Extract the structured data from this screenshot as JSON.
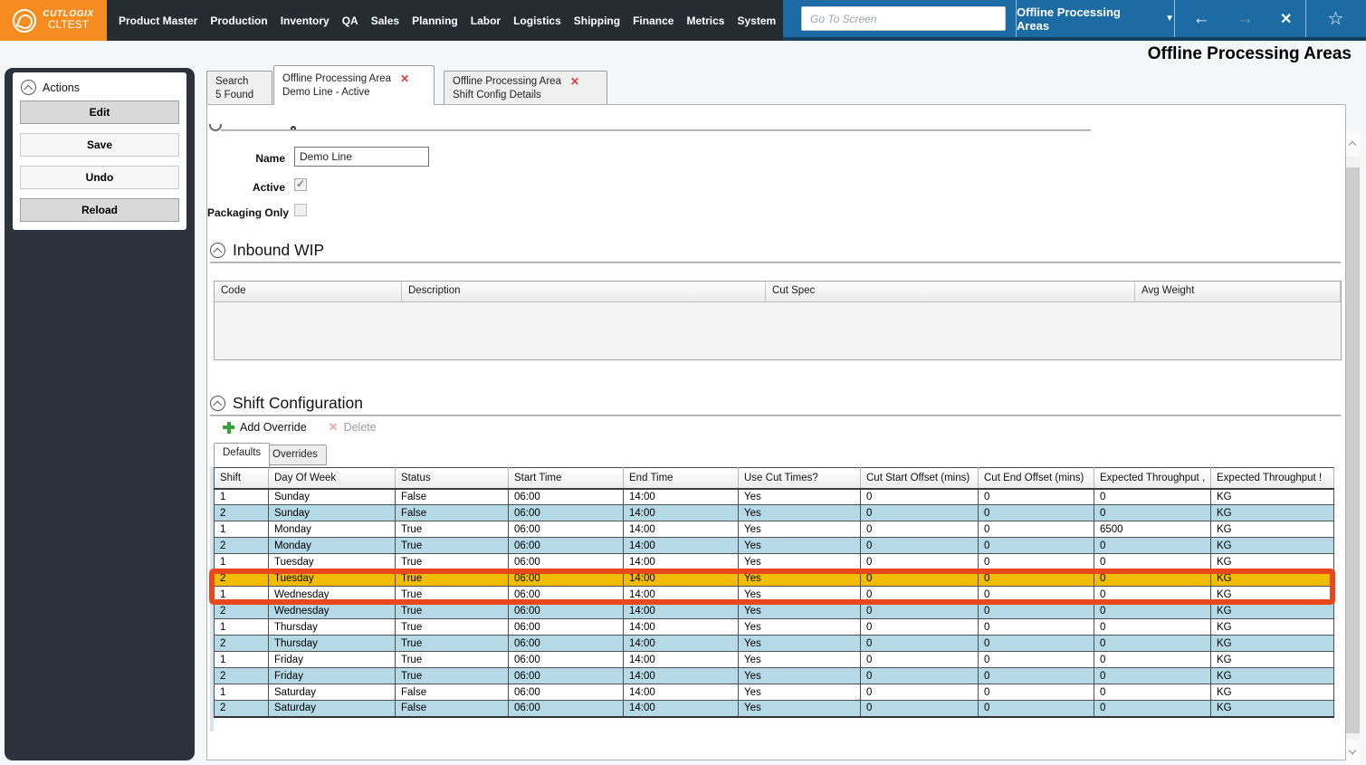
{
  "colors": {
    "logo_orange": "#f68b1f",
    "nav_dark": "#272c33",
    "accent_blue": "#1c6ba5",
    "nav_strip": "#123f5e",
    "sidebar_dark": "#2d333c",
    "tab_close_red": "#e03a3a",
    "add_green": "#3aa23a",
    "row_alt_blue": "#b5d9e6",
    "highlight_yellow": "#f2bd00",
    "annotation_orange": "#e8481b"
  },
  "app": {
    "logo_title": "CUTLOGIX",
    "logo_subtitle": "CLTEST",
    "menu": [
      "Product Master",
      "Production",
      "Inventory",
      "QA",
      "Sales",
      "Planning",
      "Labor",
      "Logistics",
      "Shipping",
      "Finance",
      "Metrics",
      "System"
    ],
    "goto_placeholder": "Go To Screen",
    "screen_selector": "Offline Processing Areas"
  },
  "page": {
    "title": "Offline Processing Areas"
  },
  "sidebar": {
    "header": "Actions",
    "buttons": [
      {
        "label": "Edit",
        "enabled": true
      },
      {
        "label": "Save",
        "enabled": false
      },
      {
        "label": "Undo",
        "enabled": false
      },
      {
        "label": "Reload",
        "enabled": true
      }
    ]
  },
  "tabs": [
    {
      "line1": "Search",
      "line2": "5 Found",
      "closable": false,
      "active": false
    },
    {
      "line1": "Offline Processing Area",
      "line2": "Demo Line - Active",
      "closable": true,
      "active": true
    },
    {
      "line1": "Offline Processing Area",
      "line2": "Shift Config Details",
      "closable": true,
      "active": false
    }
  ],
  "form": {
    "name_label": "Name",
    "name_value": "Demo Line",
    "active_label": "Active",
    "active_checked": true,
    "packaging_label": "Packaging Only",
    "packaging_checked": false
  },
  "inbound_wip": {
    "title": "Inbound WIP",
    "columns": [
      "Code",
      "Description",
      "Cut Spec",
      "Avg Weight"
    ]
  },
  "shift_config": {
    "title": "Shift Configuration",
    "toolbar": {
      "add": "Add Override",
      "delete": "Delete"
    },
    "tabs": [
      "Defaults",
      "Overrides"
    ],
    "columns": [
      "Shift",
      "Day Of Week",
      "Status",
      "Start Time",
      "End Time",
      "Use Cut Times?",
      "Cut Start Offset (mins)",
      "Cut End Offset (mins)",
      "Expected Throughput ,",
      "Expected Throughput !"
    ],
    "rows": [
      [
        "1",
        "Sunday",
        "False",
        "06:00",
        "14:00",
        "Yes",
        "0",
        "0",
        "0",
        "KG"
      ],
      [
        "2",
        "Sunday",
        "False",
        "06:00",
        "14:00",
        "Yes",
        "0",
        "0",
        "0",
        "KG"
      ],
      [
        "1",
        "Monday",
        "True",
        "06:00",
        "14:00",
        "Yes",
        "0",
        "0",
        "6500",
        "KG"
      ],
      [
        "2",
        "Monday",
        "True",
        "06:00",
        "14:00",
        "Yes",
        "0",
        "0",
        "0",
        "KG"
      ],
      [
        "1",
        "Tuesday",
        "True",
        "06:00",
        "14:00",
        "Yes",
        "0",
        "0",
        "0",
        "KG"
      ],
      [
        "2",
        "Tuesday",
        "True",
        "06:00",
        "14:00",
        "Yes",
        "0",
        "0",
        "0",
        "KG"
      ],
      [
        "1",
        "Wednesday",
        "True",
        "06:00",
        "14:00",
        "Yes",
        "0",
        "0",
        "0",
        "KG"
      ],
      [
        "2",
        "Wednesday",
        "True",
        "06:00",
        "14:00",
        "Yes",
        "0",
        "0",
        "0",
        "KG"
      ],
      [
        "1",
        "Thursday",
        "True",
        "06:00",
        "14:00",
        "Yes",
        "0",
        "0",
        "0",
        "KG"
      ],
      [
        "2",
        "Thursday",
        "True",
        "06:00",
        "14:00",
        "Yes",
        "0",
        "0",
        "0",
        "KG"
      ],
      [
        "1",
        "Friday",
        "True",
        "06:00",
        "14:00",
        "Yes",
        "0",
        "0",
        "0",
        "KG"
      ],
      [
        "2",
        "Friday",
        "True",
        "06:00",
        "14:00",
        "Yes",
        "0",
        "0",
        "0",
        "KG"
      ],
      [
        "1",
        "Saturday",
        "False",
        "06:00",
        "14:00",
        "Yes",
        "0",
        "0",
        "0",
        "KG"
      ],
      [
        "2",
        "Saturday",
        "False",
        "06:00",
        "14:00",
        "Yes",
        "0",
        "0",
        "0",
        "KG"
      ]
    ],
    "highlighted_row_index": 5
  }
}
